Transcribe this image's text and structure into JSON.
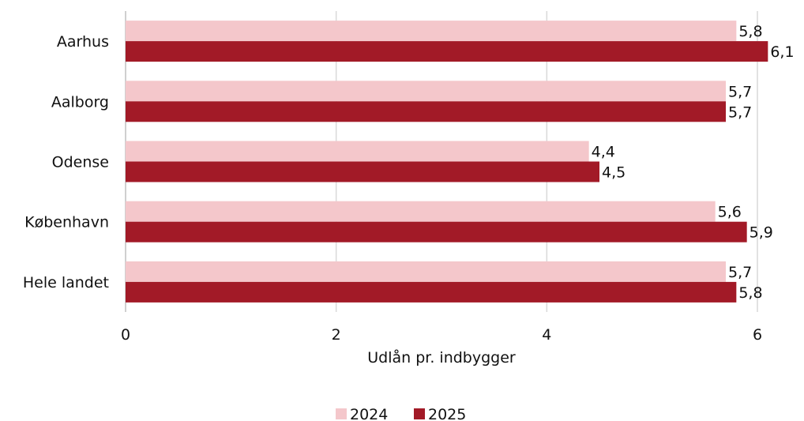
{
  "colors": {
    "series_2024": "#f4c7cb",
    "series_2025": "#a21a27",
    "grid": "#d9d9d9",
    "text": "#111111"
  },
  "chart_data": {
    "type": "bar",
    "orientation": "horizontal",
    "categories": [
      "Aarhus",
      "Aalborg",
      "Odense",
      "København",
      "Hele landet"
    ],
    "series": [
      {
        "name": "2024",
        "values": [
          5.8,
          5.7,
          4.4,
          5.6,
          5.7
        ],
        "labels": [
          "5,8",
          "5,7",
          "4,4",
          "5,6",
          "5,7"
        ]
      },
      {
        "name": "2025",
        "values": [
          6.1,
          5.7,
          4.5,
          5.9,
          5.8
        ],
        "labels": [
          "6,1",
          "5,7",
          "4,5",
          "5,9",
          "5,8"
        ]
      }
    ],
    "xlabel": "Udlån pr. indbygger",
    "xlim": [
      0,
      6
    ],
    "xticks": [
      0,
      2,
      4,
      6
    ],
    "xtick_labels": [
      "0",
      "2",
      "4",
      "6"
    ],
    "grid": "vertical",
    "legend": "bottom"
  }
}
